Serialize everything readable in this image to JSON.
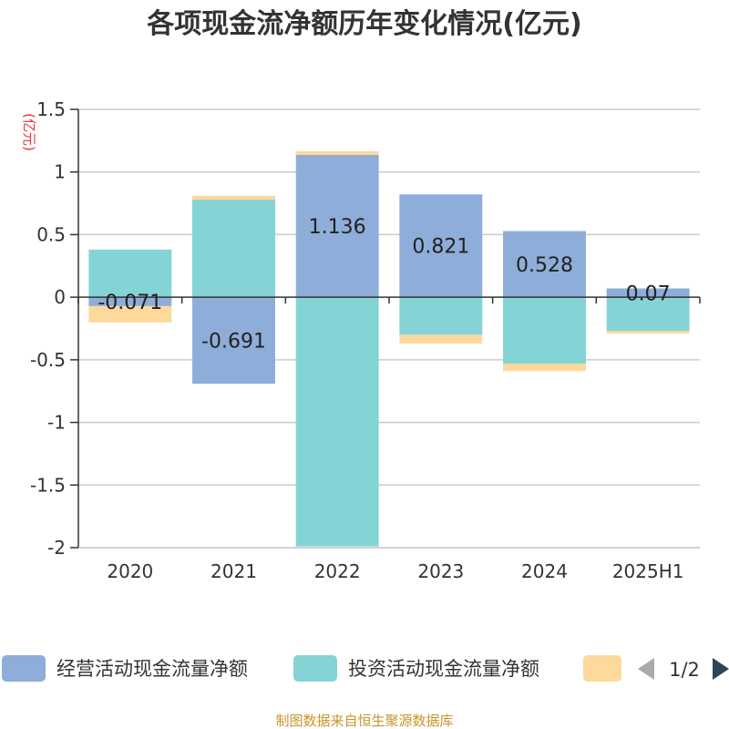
{
  "chart_data": {
    "type": "bar",
    "stacked": true,
    "title": "各项现金流净额历年变化情况(亿元)",
    "unit_label": "(亿元)",
    "categories": [
      "2020",
      "2021",
      "2022",
      "2023",
      "2024",
      "2025H1"
    ],
    "series": [
      {
        "name": "经营活动现金流量净额",
        "color": "#8eadd9",
        "values": [
          -0.071,
          -0.691,
          1.136,
          0.821,
          0.528,
          0.07
        ],
        "labels": [
          "-0.071",
          "-0.691",
          "1.136",
          "0.821",
          "0.528",
          "0.07"
        ]
      },
      {
        "name": "投资活动现金流量净额",
        "color": "#84d4d6",
        "values": [
          0.38,
          0.78,
          -1.99,
          -0.3,
          -0.53,
          -0.27
        ]
      },
      {
        "name": "",
        "color": "#fdd99b",
        "values": [
          -0.13,
          0.03,
          0.03,
          -0.07,
          -0.06,
          -0.02
        ]
      }
    ],
    "yticks": [
      "1.5",
      "1",
      "0.5",
      "0",
      "-0.5",
      "-1",
      "-1.5",
      "-2"
    ],
    "ylim": [
      -2,
      1.5
    ],
    "grid": true,
    "legend_position": "bottom"
  },
  "legend": {
    "page_indicator": "1/2"
  },
  "source_text": "制图数据来自恒生聚源数据库"
}
